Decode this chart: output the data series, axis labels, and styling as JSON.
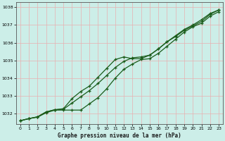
{
  "title": "Graphe pression niveau de la mer (hPa)",
  "bg_color": "#cceee8",
  "grid_color": "#aad4ce",
  "line_color": "#1a5c1a",
  "xmin": -0.5,
  "xmax": 23.5,
  "ymin": 1031.4,
  "ymax": 1038.3,
  "yticks": [
    1032,
    1033,
    1034,
    1035,
    1036,
    1037,
    1038
  ],
  "xticks": [
    0,
    1,
    2,
    3,
    4,
    5,
    6,
    7,
    8,
    9,
    10,
    11,
    12,
    13,
    14,
    15,
    16,
    17,
    18,
    19,
    20,
    21,
    22,
    23
  ],
  "line1_x": [
    0,
    1,
    2,
    3,
    4,
    5,
    6,
    7,
    8,
    9,
    10,
    11,
    12,
    13,
    14,
    15,
    16,
    17,
    18,
    19,
    20,
    21,
    22,
    23
  ],
  "line1_y": [
    1031.6,
    1031.72,
    1031.8,
    1032.05,
    1032.2,
    1032.2,
    1032.2,
    1032.2,
    1032.55,
    1032.9,
    1033.4,
    1034.0,
    1034.5,
    1034.8,
    1035.05,
    1035.1,
    1035.4,
    1035.8,
    1036.2,
    1036.6,
    1036.9,
    1037.1,
    1037.5,
    1037.75
  ],
  "line2_x": [
    0,
    1,
    2,
    3,
    4,
    5,
    6,
    7,
    8,
    9,
    10,
    11,
    12,
    13,
    14,
    15,
    16,
    17,
    18,
    19,
    20,
    21,
    22,
    23
  ],
  "line2_y": [
    1031.6,
    1031.72,
    1031.82,
    1032.1,
    1032.22,
    1032.25,
    1032.6,
    1032.95,
    1033.3,
    1033.7,
    1034.15,
    1034.6,
    1034.95,
    1035.15,
    1035.2,
    1035.3,
    1035.65,
    1036.05,
    1036.4,
    1036.75,
    1037.0,
    1037.3,
    1037.65,
    1037.85
  ],
  "line3_x": [
    0,
    1,
    2,
    3,
    4,
    5,
    6,
    7,
    8,
    9,
    10,
    11,
    12,
    13,
    14,
    15,
    16,
    17,
    18,
    19,
    20,
    21,
    22,
    23
  ],
  "line3_y": [
    1031.6,
    1031.72,
    1031.82,
    1032.1,
    1032.22,
    1032.28,
    1032.85,
    1033.25,
    1033.55,
    1034.05,
    1034.55,
    1035.05,
    1035.2,
    1035.1,
    1035.1,
    1035.3,
    1035.65,
    1036.05,
    1036.35,
    1036.7,
    1036.95,
    1037.2,
    1037.6,
    1037.85
  ]
}
